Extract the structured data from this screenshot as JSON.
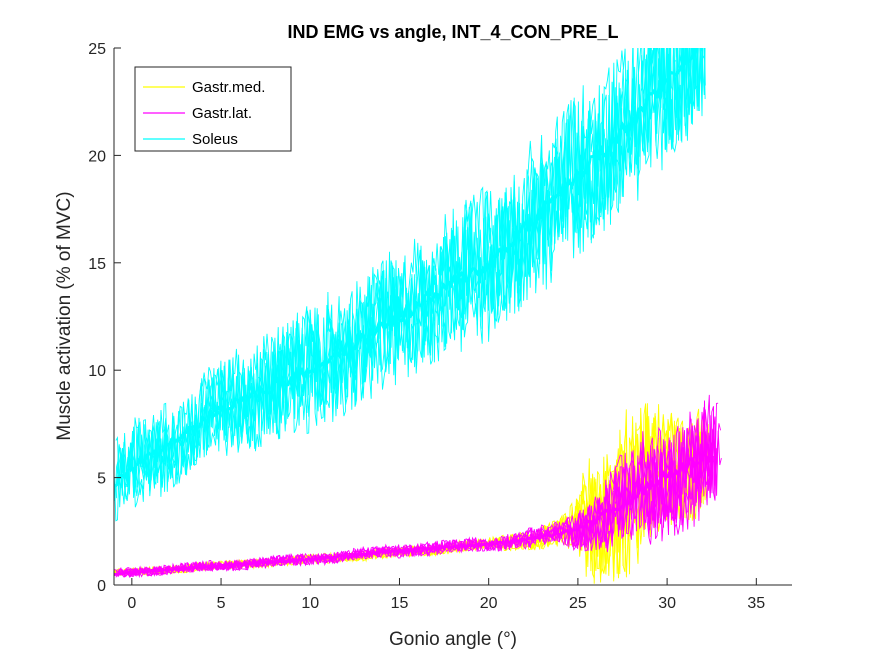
{
  "chart_data": {
    "type": "line",
    "title": "IND EMG vs angle, INT_4_CON_PRE_L",
    "xlabel": "Gonio angle (°)",
    "ylabel": "Muscle activation (% of MVC)",
    "xlim": [
      -1,
      37
    ],
    "ylim": [
      0,
      25
    ],
    "xticks": [
      0,
      5,
      10,
      15,
      20,
      25,
      30,
      35
    ],
    "yticks": [
      0,
      5,
      10,
      15,
      20,
      25
    ],
    "legend_position": "top-left",
    "series": [
      {
        "name": "Gastr.med.",
        "color": "#FFFF00",
        "x_range": [
          -1,
          32.5
        ],
        "mean_x": [
          -1,
          0,
          5,
          10,
          15,
          20,
          22,
          24,
          25,
          26,
          27,
          28,
          29,
          30,
          31,
          32
        ],
        "mean_y": [
          0.6,
          0.6,
          0.9,
          1.2,
          1.5,
          1.9,
          2.1,
          2.4,
          2.7,
          3.2,
          3.8,
          4.4,
          4.9,
          5.4,
          5.7,
          6.0
        ],
        "noise_x": [
          -1,
          20,
          24,
          25,
          25.5,
          27,
          28,
          30,
          32.5
        ],
        "noise_amp": [
          0.3,
          0.5,
          1.2,
          2.5,
          5,
          6,
          7,
          5,
          5
        ]
      },
      {
        "name": "Gastr.lat.",
        "color": "#FF00FF",
        "x_range": [
          -1,
          33.2
        ],
        "mean_x": [
          -1,
          0,
          5,
          10,
          15,
          20,
          22,
          24,
          25,
          26,
          27,
          28,
          29,
          30,
          31,
          32,
          33
        ],
        "mean_y": [
          0.5,
          0.6,
          0.9,
          1.2,
          1.6,
          1.9,
          2.1,
          2.4,
          2.6,
          3.0,
          3.5,
          4.1,
          4.6,
          5.1,
          5.5,
          5.8,
          6.0
        ],
        "noise_x": [
          -1,
          20,
          24,
          26,
          28,
          30,
          33
        ],
        "noise_amp": [
          0.4,
          0.6,
          1.0,
          2.5,
          4.5,
          5,
          5
        ]
      },
      {
        "name": "Soleus",
        "color": "#00FFFF",
        "x_range": [
          -1,
          32.5
        ],
        "mean_x": [
          -1,
          0,
          5,
          10,
          15,
          20,
          25,
          28,
          30,
          32
        ],
        "mean_y": [
          4.6,
          5.5,
          8.2,
          10.0,
          12.5,
          15.0,
          19.0,
          21.5,
          23.5,
          25.5
        ],
        "noise_x": [
          -1,
          5,
          10,
          15,
          20,
          25,
          30,
          32.5
        ],
        "noise_amp": [
          3.5,
          4,
          5,
          5.5,
          6,
          6.5,
          7,
          7
        ]
      }
    ]
  }
}
